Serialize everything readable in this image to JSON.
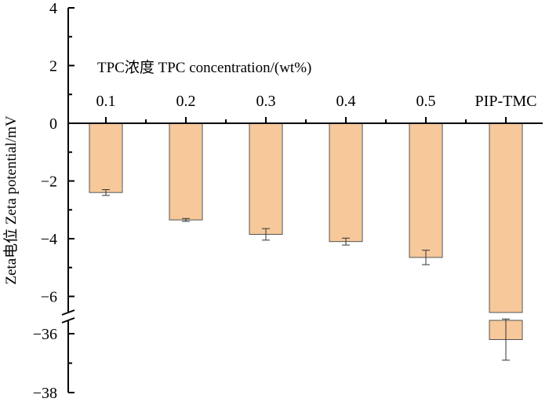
{
  "chart_data": {
    "type": "bar",
    "title": "",
    "xlabel": "TPC浓度 TPC concentration/(wt%)",
    "ylabel": "Zeta电位 Zeta potential/mV",
    "categories": [
      "0.1",
      "0.2",
      "0.3",
      "0.4",
      "0.5",
      "PIP-TMC"
    ],
    "values": [
      -2.4,
      -3.35,
      -3.85,
      -4.1,
      -4.65,
      -36.2
    ],
    "errors": [
      0.1,
      0.05,
      0.2,
      0.12,
      0.25,
      0.7
    ],
    "axis_break": {
      "lower_segment": [
        -38,
        -35
      ],
      "upper_segment": [
        -6.6,
        4
      ]
    },
    "y_ticks_upper": [
      "4",
      "2",
      "0",
      "-2",
      "-4",
      "-6"
    ],
    "y_ticks_lower": [
      "-36",
      "-38"
    ],
    "ylim": [
      -38,
      4
    ],
    "bar_color": "#f6c89a",
    "bar_edge_color": "#555555",
    "grid": false,
    "legend": "none"
  }
}
